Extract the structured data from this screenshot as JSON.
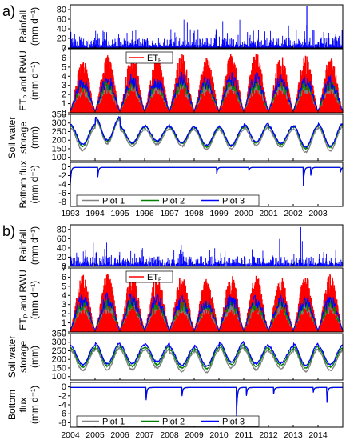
{
  "figure": {
    "panels": [
      {
        "label": "a)",
        "x_ticks": [
          "1993",
          "1994",
          "1995",
          "1996",
          "1997",
          "1998",
          "1999",
          "2000",
          "2001",
          "2002",
          "2003"
        ],
        "subplots": [
          {
            "key": "rain",
            "ylabel_lines": [
              "Rainfall",
              "(mm d⁻¹)"
            ],
            "yticks": [
              "0",
              "20",
              "40",
              "60",
              "80"
            ],
            "ylim": [
              0,
              90
            ]
          },
          {
            "key": "et",
            "ylabel_lines": [
              "ETₚ and RWU",
              "(mm d⁻¹)"
            ],
            "yticks": [
              "0",
              "1",
              "2",
              "3",
              "4",
              "5",
              "6",
              "7"
            ],
            "ylim": [
              0,
              7
            ],
            "legend": [
              "ETₚ"
            ]
          },
          {
            "key": "sws",
            "ylabel_lines": [
              "Soil water",
              "storage",
              "(mm)"
            ],
            "yticks": [
              "100",
              "150",
              "200",
              "250",
              "300",
              "350"
            ],
            "ylim": [
              80,
              350
            ]
          },
          {
            "key": "flux",
            "ylabel_lines": [
              "Bottom flux",
              "(mm d⁻¹)"
            ],
            "yticks": [
              "-8",
              "-6",
              "-4",
              "-2",
              "0"
            ],
            "ylim": [
              -9,
              1
            ],
            "legend": [
              "Plot 1",
              "Plot 2",
              "Plot 3"
            ]
          }
        ]
      },
      {
        "label": "b)",
        "x_ticks": [
          "2004",
          "2005",
          "2006",
          "2007",
          "2008",
          "2009",
          "2010",
          "2011",
          "2012",
          "2013",
          "2014"
        ],
        "subplots": [
          {
            "key": "rain",
            "ylabel_lines": [
              "Rainfall",
              "(mm d⁻¹)"
            ],
            "yticks": [
              "0",
              "20",
              "40",
              "60",
              "80"
            ],
            "ylim": [
              0,
              90
            ]
          },
          {
            "key": "et",
            "ylabel_lines": [
              "ETₚ and RWU",
              "(mm d⁻¹)"
            ],
            "yticks": [
              "0",
              "1",
              "2",
              "3",
              "4",
              "5",
              "6",
              "7"
            ],
            "ylim": [
              0,
              7
            ],
            "legend": [
              "ETₚ"
            ]
          },
          {
            "key": "sws",
            "ylabel_lines": [
              "Soil water",
              "storage",
              "(mm)"
            ],
            "yticks": [
              "100",
              "150",
              "200",
              "250",
              "300",
              "350"
            ],
            "ylim": [
              80,
              350
            ]
          },
          {
            "key": "flux",
            "ylabel_lines": [
              "Bottom",
              "flux",
              "(mm d⁻¹)"
            ],
            "yticks": [
              "-8",
              "-6",
              "-4",
              "-2",
              "0"
            ],
            "ylim": [
              -9,
              1
            ],
            "legend": [
              "Plot 1",
              "Plot 2",
              "Plot 3"
            ]
          }
        ]
      }
    ]
  },
  "colors": {
    "ETp": "#ff0000",
    "plot1": "#808080",
    "plot2": "#008000",
    "plot3": "#0000ff",
    "axis": "#000000"
  },
  "chart_data": [
    {
      "type": "line",
      "panel": "a",
      "x_range": [
        1993,
        2004
      ],
      "series": [
        {
          "name": "ETp",
          "subplot": "et",
          "annual_peak": [
            5.9,
            6.4,
            6.5,
            6.3,
            6.6,
            6.2,
            6.6,
            6.7,
            6.3,
            6.4,
            6.2
          ],
          "annual_min": 0.3
        },
        {
          "name": "Plot 1",
          "subplot": "sws",
          "annual_max": [
            270,
            320,
            260,
            265,
            265,
            260,
            260,
            275,
            260,
            265,
            275
          ],
          "annual_min": [
            140,
            180,
            165,
            175,
            165,
            145,
            150,
            170,
            160,
            130,
            140
          ]
        },
        {
          "name": "Plot 2",
          "subplot": "sws",
          "annual_max": [
            285,
            330,
            275,
            280,
            275,
            270,
            275,
            290,
            275,
            280,
            290
          ],
          "annual_min": [
            165,
            195,
            180,
            190,
            180,
            160,
            165,
            185,
            175,
            150,
            160
          ]
        },
        {
          "name": "Plot 3",
          "subplot": "sws",
          "annual_max": [
            290,
            335,
            280,
            285,
            280,
            275,
            280,
            295,
            280,
            285,
            295
          ],
          "annual_min": [
            175,
            200,
            185,
            195,
            185,
            170,
            170,
            190,
            180,
            160,
            165
          ]
        },
        {
          "name": "Rainfall",
          "subplot": "rain",
          "max_event": {
            "x": 2002.55,
            "y": 88
          }
        },
        {
          "name": "Bottom flux",
          "subplot": "flux",
          "events": [
            {
              "x": 1993.0,
              "y": -4.0
            },
            {
              "x": 1994.1,
              "y": -3.0
            },
            {
              "x": 1998.9,
              "y": -2.0
            },
            {
              "x": 2000.2,
              "y": -1.0
            },
            {
              "x": 2002.4,
              "y": -5.8
            },
            {
              "x": 2002.7,
              "y": -2.5
            },
            {
              "x": 2003.9,
              "y": -1.5
            }
          ]
        }
      ]
    },
    {
      "type": "line",
      "panel": "b",
      "x_range": [
        2004,
        2015
      ],
      "series": [
        {
          "name": "ETp",
          "subplot": "et",
          "annual_peak": [
            6.3,
            6.5,
            6.4,
            6.5,
            6.2,
            6.0,
            6.4,
            6.3,
            6.2,
            6.3,
            6.4
          ],
          "annual_min": 0.3
        },
        {
          "name": "Plot 1",
          "subplot": "sws",
          "annual_max": [
            250,
            265,
            255,
            260,
            240,
            250,
            270,
            255,
            245,
            260,
            250
          ],
          "annual_min": [
            135,
            140,
            140,
            150,
            130,
            125,
            150,
            140,
            145,
            130,
            135
          ]
        },
        {
          "name": "Plot 2",
          "subplot": "sws",
          "annual_max": [
            265,
            280,
            270,
            275,
            255,
            265,
            285,
            270,
            260,
            275,
            265
          ],
          "annual_min": [
            155,
            160,
            160,
            170,
            150,
            145,
            170,
            160,
            165,
            150,
            155
          ]
        },
        {
          "name": "Plot 3",
          "subplot": "sws",
          "annual_max": [
            280,
            295,
            285,
            290,
            270,
            280,
            300,
            285,
            275,
            290,
            280
          ],
          "annual_min": [
            170,
            175,
            175,
            185,
            165,
            160,
            185,
            175,
            180,
            165,
            170
          ]
        },
        {
          "name": "Rainfall",
          "subplot": "rain",
          "max_event": {
            "x": 2013.3,
            "y": 85
          }
        },
        {
          "name": "Bottom flux",
          "subplot": "flux",
          "events": [
            {
              "x": 2007.05,
              "y": -3.8
            },
            {
              "x": 2008.5,
              "y": -2.6
            },
            {
              "x": 2010.7,
              "y": -8.8
            },
            {
              "x": 2011.1,
              "y": -2.5
            },
            {
              "x": 2012.2,
              "y": -2.0
            },
            {
              "x": 2013.8,
              "y": -1.5
            },
            {
              "x": 2014.35,
              "y": -4.6
            }
          ]
        }
      ]
    }
  ]
}
